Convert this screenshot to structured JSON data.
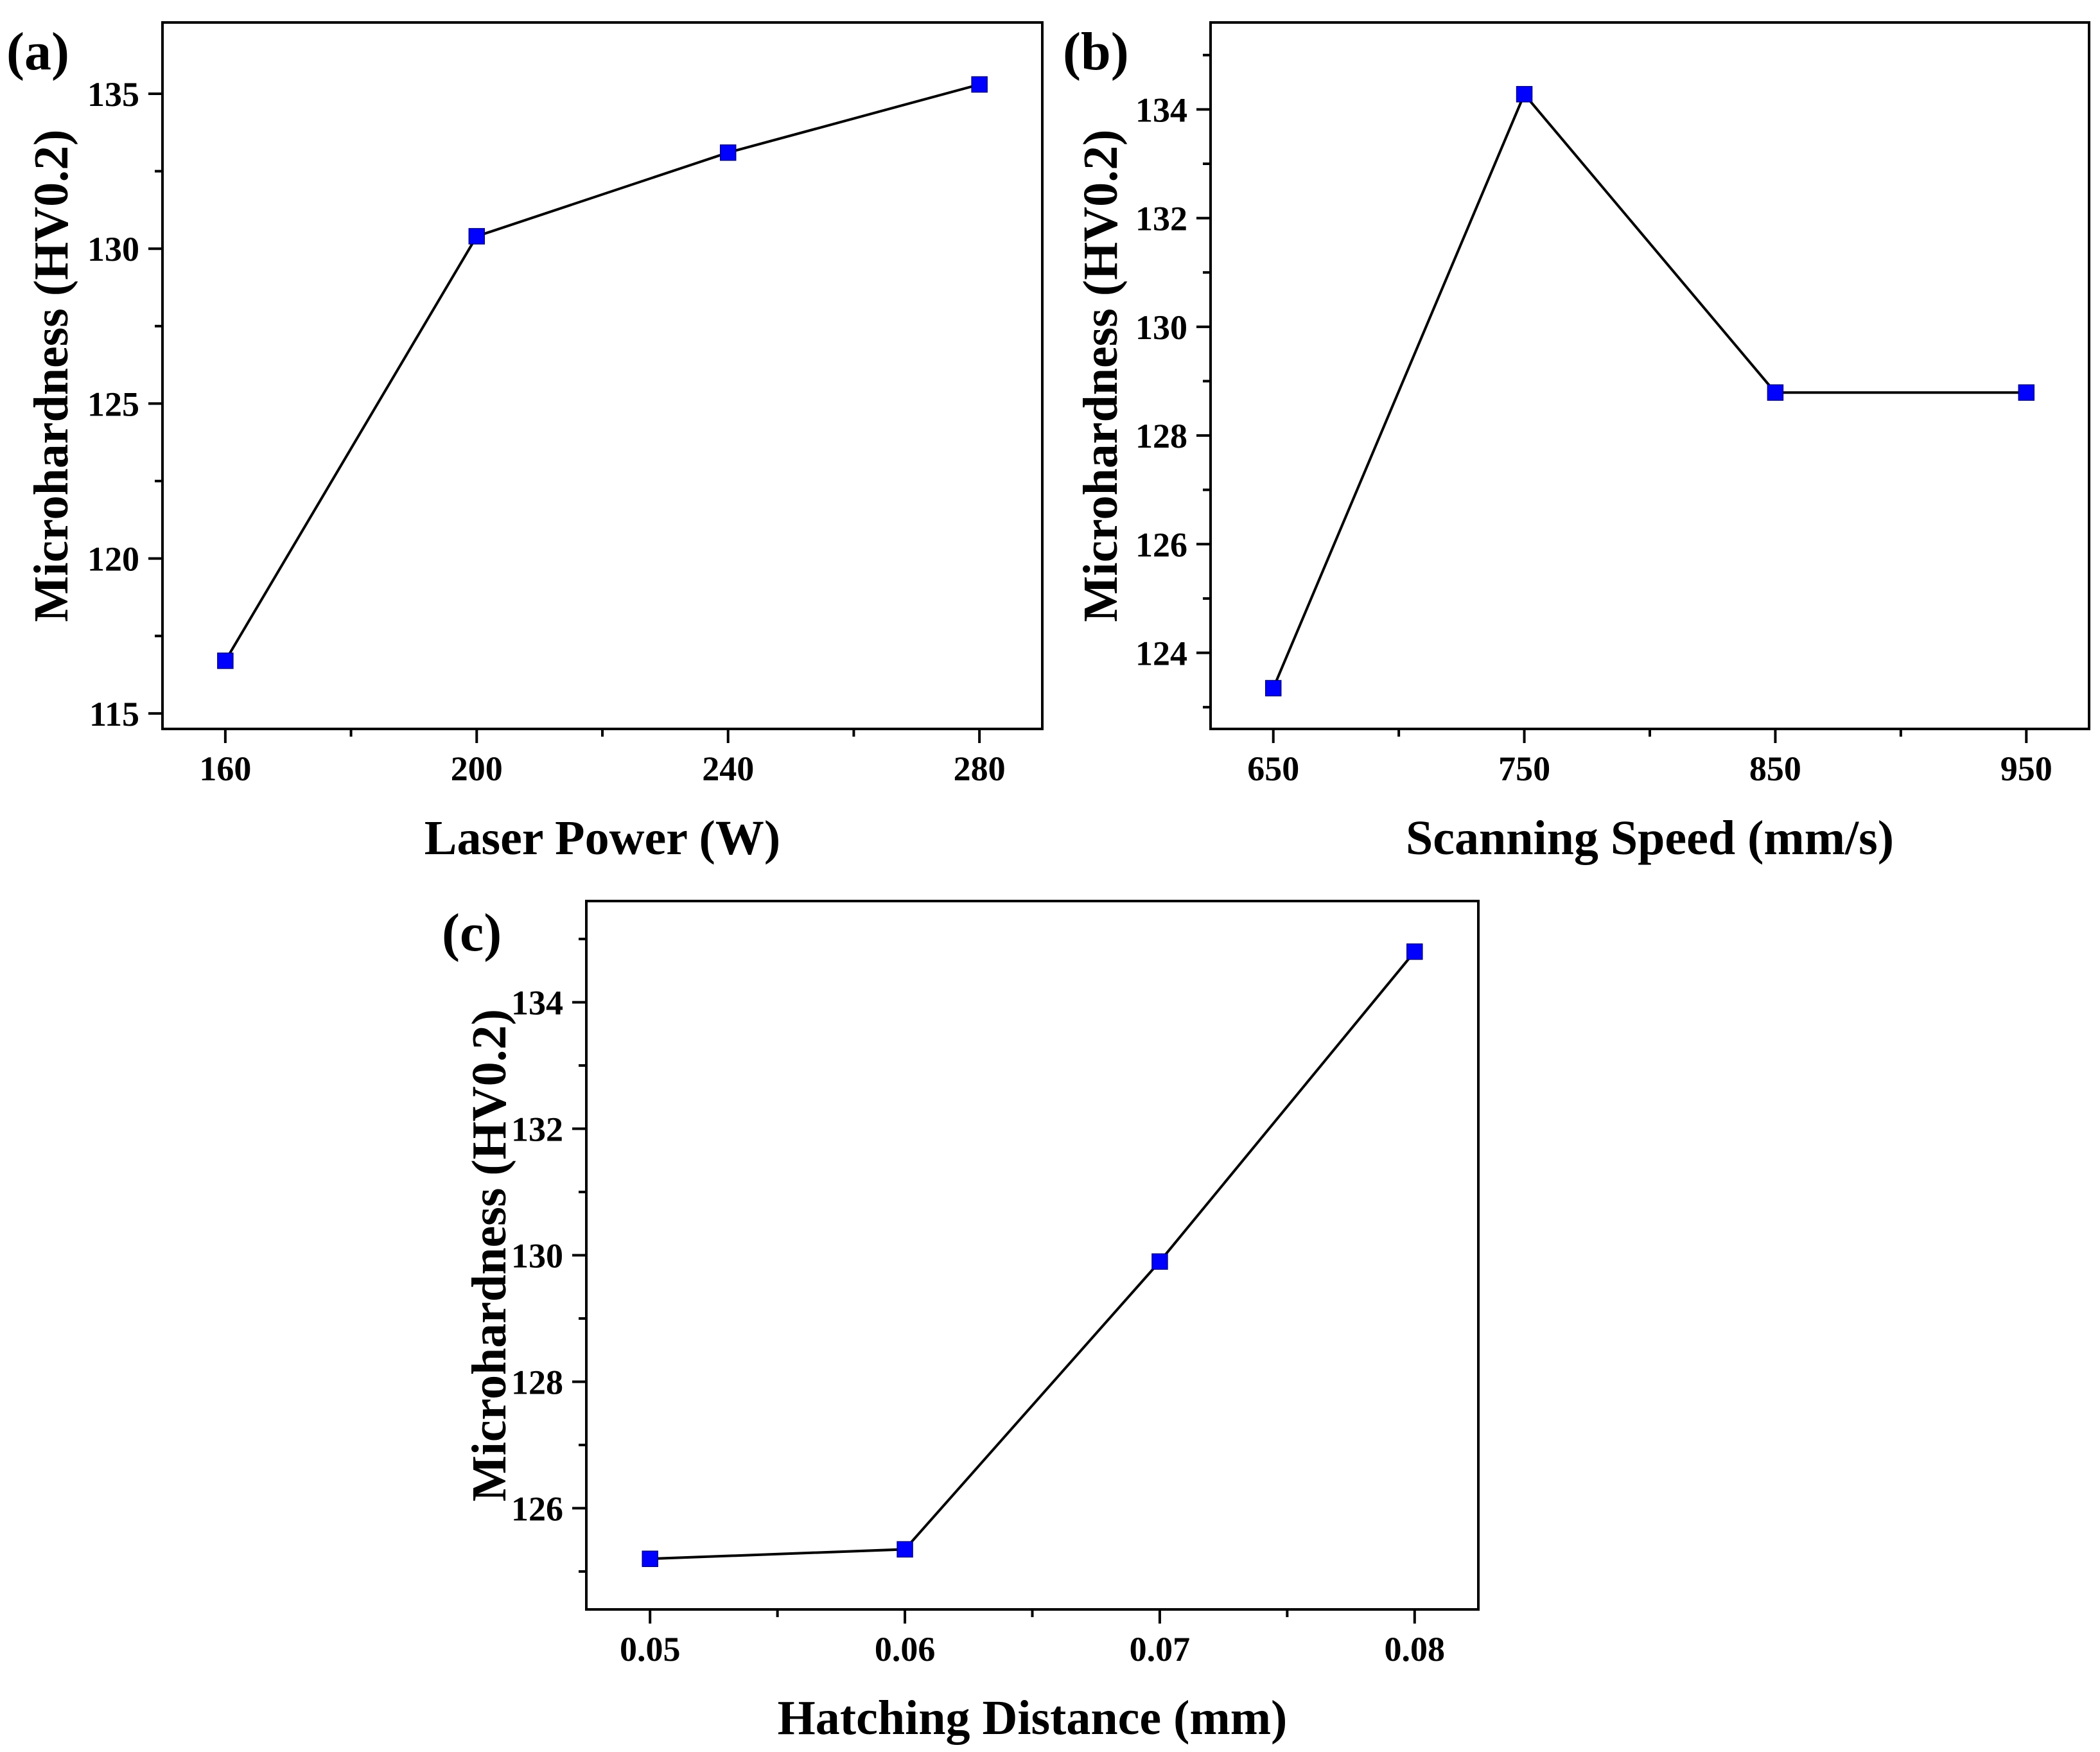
{
  "figure": {
    "marker_color": "#0000ff",
    "line_color": "#000000"
  },
  "chart_data": [
    {
      "type": "line",
      "panel_label": "(a)",
      "xlabel": "Laser Power (W)",
      "ylabel": "Microhardness (HV0.2)",
      "xlim": [
        150,
        290
      ],
      "ylim": [
        114.5,
        137.3
      ],
      "x_ticks": [
        160,
        200,
        240,
        280
      ],
      "x_minor_ticks": [
        180,
        220,
        260
      ],
      "x_tick_labels": [
        "160",
        "200",
        "240",
        "280"
      ],
      "y_ticks": [
        115,
        120,
        125,
        130,
        135
      ],
      "y_minor_ticks": [
        117.5,
        122.5,
        127.5,
        132.5
      ],
      "y_tick_labels": [
        "115",
        "120",
        "125",
        "130",
        "135"
      ],
      "series": [
        {
          "name": "Microhardness",
          "x": [
            160,
            200,
            240,
            280
          ],
          "values": [
            116.7,
            130.4,
            133.1,
            135.3
          ]
        }
      ]
    },
    {
      "type": "line",
      "panel_label": "(b)",
      "xlabel": "Scanning Speed (mm/s)",
      "ylabel": "Microhardness (HV0.2)",
      "xlim": [
        625,
        975
      ],
      "ylim": [
        122.6,
        135.6
      ],
      "x_ticks": [
        650,
        750,
        850,
        950
      ],
      "x_minor_ticks": [
        700,
        800,
        900
      ],
      "x_tick_labels": [
        "650",
        "750",
        "850",
        "950"
      ],
      "y_ticks": [
        124,
        126,
        128,
        130,
        132,
        134
      ],
      "y_minor_ticks": [
        123,
        125,
        127,
        129,
        131,
        133,
        135
      ],
      "y_tick_labels": [
        "124",
        "126",
        "128",
        "130",
        "132",
        "134"
      ],
      "series": [
        {
          "name": "Microhardness",
          "x": [
            650,
            750,
            850,
            950
          ],
          "values": [
            123.35,
            134.28,
            128.79,
            128.79
          ]
        }
      ]
    },
    {
      "type": "line",
      "panel_label": "(c)",
      "xlabel": "Hatching Distance (mm)",
      "ylabel": "Microhardness (HV0.2)",
      "xlim": [
        0.0475,
        0.0825
      ],
      "ylim": [
        124.4,
        135.6
      ],
      "x_ticks": [
        0.05,
        0.06,
        0.07,
        0.08
      ],
      "x_minor_ticks": [
        0.055,
        0.065,
        0.075
      ],
      "x_tick_labels": [
        "0.05",
        "0.06",
        "0.07",
        "0.08"
      ],
      "y_ticks": [
        126,
        128,
        130,
        132,
        134
      ],
      "y_minor_ticks": [
        125,
        127,
        129,
        131,
        133,
        135
      ],
      "y_tick_labels": [
        "126",
        "128",
        "130",
        "132",
        "134"
      ],
      "series": [
        {
          "name": "Microhardness",
          "x": [
            0.05,
            0.06,
            0.07,
            0.08
          ],
          "values": [
            125.2,
            125.35,
            129.9,
            134.8
          ]
        }
      ]
    }
  ]
}
